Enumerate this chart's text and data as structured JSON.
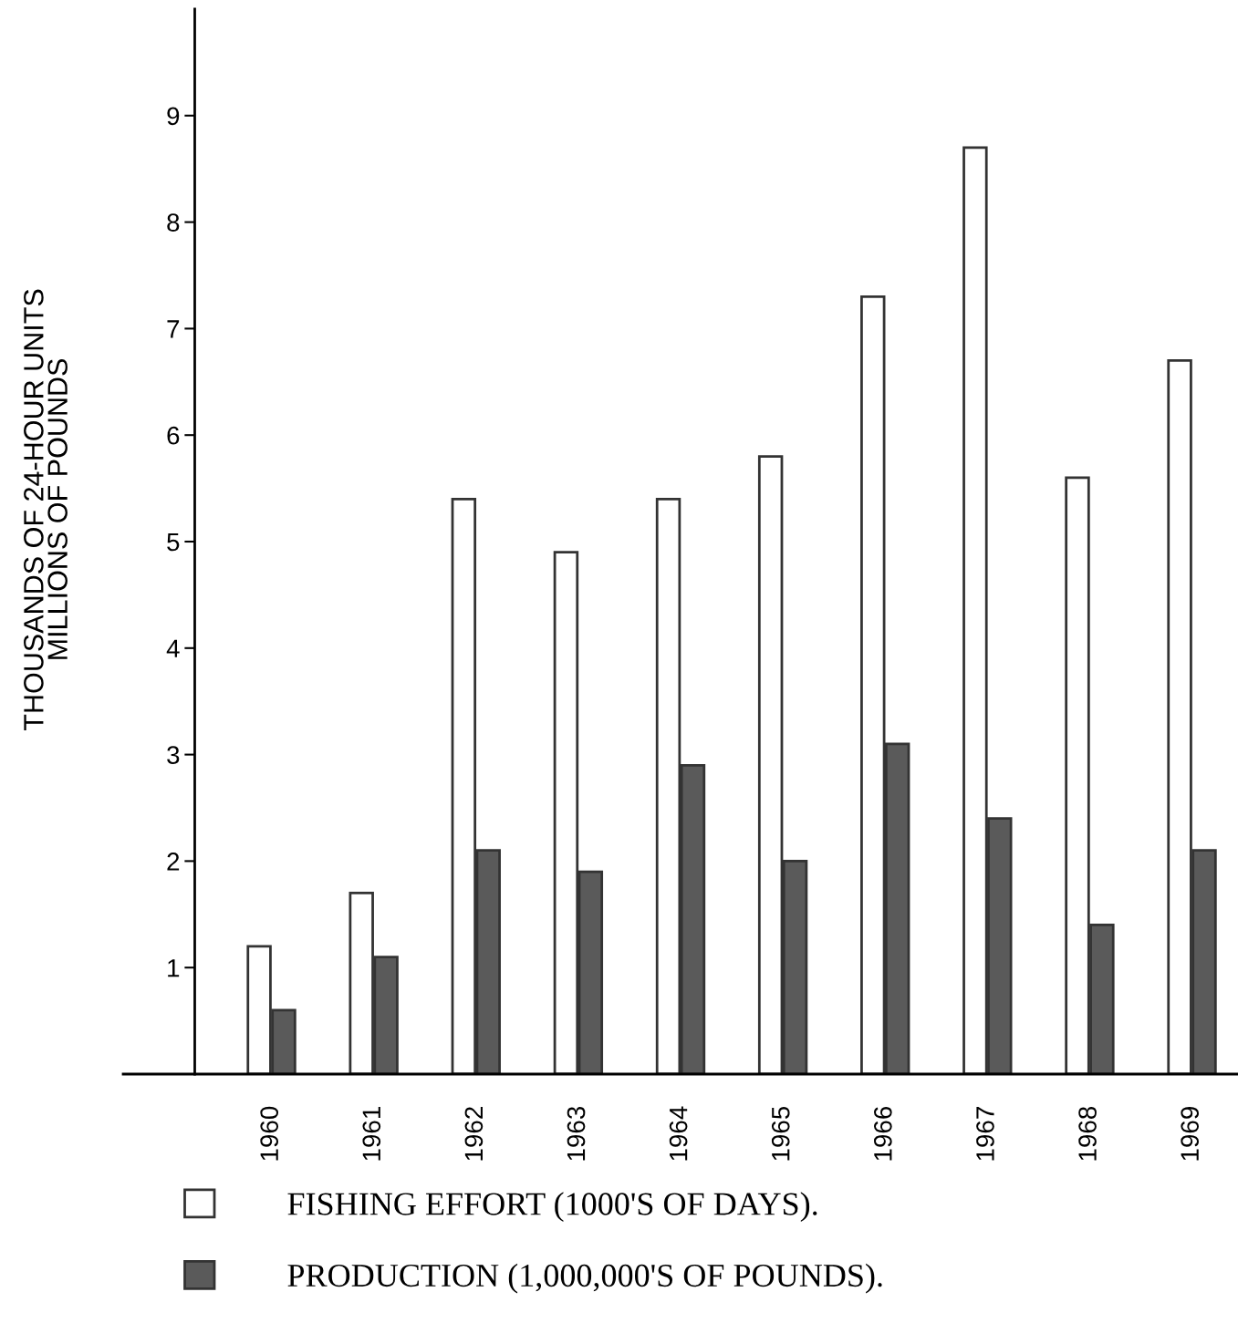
{
  "chart_data": {
    "type": "bar",
    "ylabel": "THOUSANDS OF 24-HOUR UNITS\nMILLIONS OF POUNDS",
    "categories": [
      "1960",
      "1961",
      "1962",
      "1963",
      "1964",
      "1965",
      "1966",
      "1967",
      "1968",
      "1969"
    ],
    "series": [
      {
        "name": "FISHING EFFORT (1000'S OF DAYS).",
        "color": "#ffffff",
        "values": [
          1.2,
          1.7,
          5.4,
          4.9,
          5.4,
          5.8,
          7.3,
          8.7,
          5.6,
          6.7
        ]
      },
      {
        "name": "PRODUCTION (1,000,000'S OF POUNDS).",
        "color": "#5a5a5a",
        "values": [
          0.6,
          1.1,
          2.1,
          1.9,
          2.9,
          2.0,
          3.1,
          2.4,
          1.4,
          2.1
        ]
      }
    ],
    "ylim": [
      0,
      10
    ],
    "yticks": [
      1,
      2,
      3,
      4,
      5,
      6,
      7,
      8,
      9
    ],
    "grid": false,
    "legend": "bottom"
  }
}
